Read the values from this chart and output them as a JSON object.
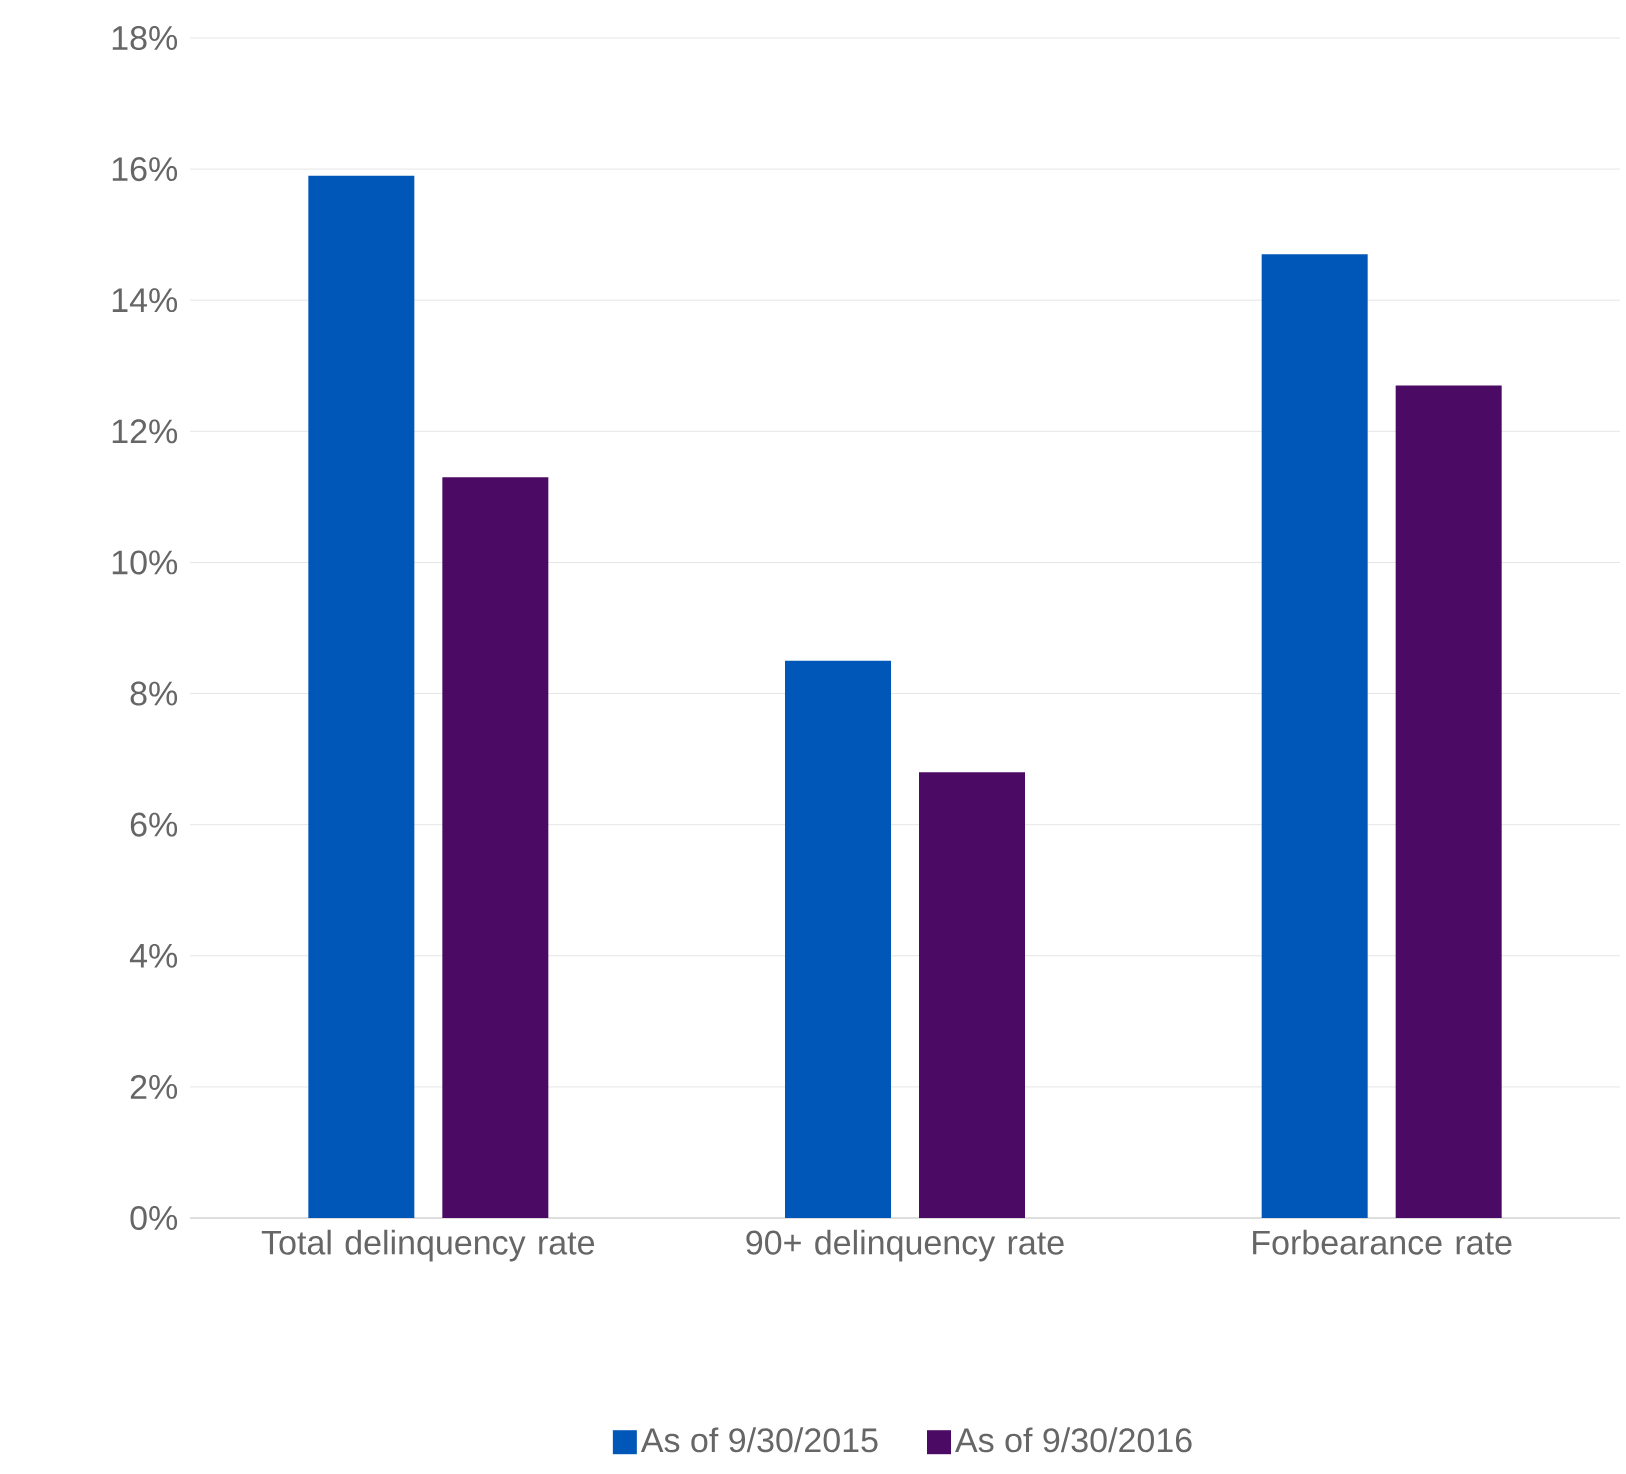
{
  "chart_data": {
    "type": "bar",
    "categories": [
      "Total delinquency rate",
      "90+ delinquency rate",
      "Forbearance rate"
    ],
    "series": [
      {
        "name": "As of 9/30/2015",
        "color": "#0057b8",
        "values": [
          15.9,
          8.5,
          14.7
        ]
      },
      {
        "name": "As of 9/30/2016",
        "color": "#4b0a63",
        "values": [
          11.3,
          6.8,
          12.7
        ]
      }
    ],
    "ylim": [
      0,
      18
    ],
    "yticks": [
      {
        "value": 0,
        "label": "0%"
      },
      {
        "value": 2,
        "label": "2%"
      },
      {
        "value": 4,
        "label": "4%"
      },
      {
        "value": 6,
        "label": "6%"
      },
      {
        "value": 8,
        "label": "8%"
      },
      {
        "value": 10,
        "label": "10%"
      },
      {
        "value": 12,
        "label": "12%"
      },
      {
        "value": 14,
        "label": "14%"
      },
      {
        "value": 16,
        "label": "16%"
      },
      {
        "value": 18,
        "label": "18%"
      }
    ],
    "grid": "y",
    "legend": "bottom"
  }
}
